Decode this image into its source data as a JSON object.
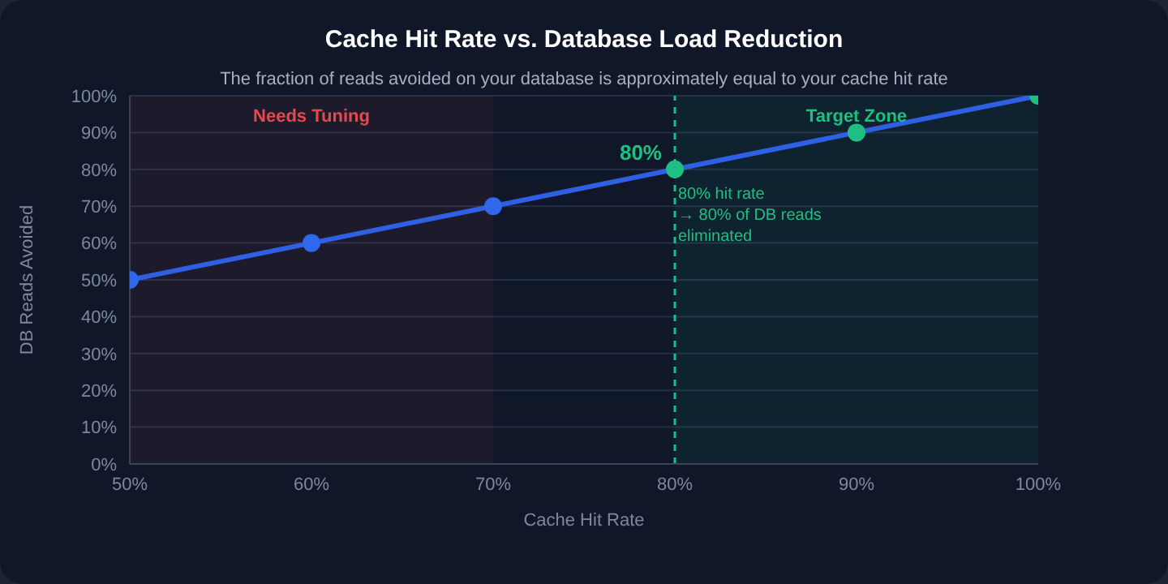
{
  "chart_data": {
    "type": "line",
    "title": "Cache Hit Rate vs. Database Load Reduction",
    "subtitle": "The fraction of reads avoided on your database is approximately equal to your cache hit rate",
    "xlabel": "Cache Hit Rate",
    "ylabel": "DB Reads Avoided",
    "x": [
      50,
      60,
      70,
      80,
      90,
      100
    ],
    "series": [
      {
        "color": "#2f5fe3",
        "colors": [
          "#2f68eb",
          "#2f68eb",
          "#2f68eb",
          "#1fbf83",
          "#1fbf83",
          "#1fbf83"
        ],
        "values": [
          50,
          60,
          70,
          80,
          90,
          100
        ]
      }
    ],
    "xlim": [
      50,
      100
    ],
    "xticks": [
      {
        "value": 50,
        "label": "50%"
      },
      {
        "value": 60,
        "label": "60%"
      },
      {
        "value": 70,
        "label": "70%"
      },
      {
        "value": 80,
        "label": "80%"
      },
      {
        "value": 90,
        "label": "90%"
      },
      {
        "value": 100,
        "label": "100%"
      }
    ],
    "ylim": [
      0,
      100
    ],
    "yticks": [
      {
        "value": 0,
        "label": "0%"
      },
      {
        "value": 10,
        "label": "10%"
      },
      {
        "value": 20,
        "label": "20%"
      },
      {
        "value": 30,
        "label": "30%"
      },
      {
        "value": 40,
        "label": "40%"
      },
      {
        "value": 50,
        "label": "50%"
      },
      {
        "value": 60,
        "label": "60%"
      },
      {
        "value": 70,
        "label": "70%"
      },
      {
        "value": 80,
        "label": "80%"
      },
      {
        "value": 90,
        "label": "90%"
      },
      {
        "value": 100,
        "label": "100%"
      }
    ],
    "bands": [
      {
        "axis": "x",
        "from": 50,
        "to": 70,
        "label": "Needs Tuning",
        "color": "#e5484d"
      },
      {
        "axis": "x",
        "from": 80,
        "to": 100,
        "label": "Target Zone",
        "color": "#1fbf83"
      }
    ],
    "ref_lines": [
      {
        "axis": "x",
        "value": 80,
        "color": "#1fbf83",
        "line_style": "dashed"
      }
    ],
    "annotations": [
      {
        "text": "80%",
        "x": 80,
        "y": 80
      },
      {
        "text": "80% hit rate\n→ 80% of DB reads\neliminated",
        "x": 80,
        "y": 80
      }
    ],
    "grid": "y",
    "marker": "circle",
    "line_style": "solid",
    "legend": false
  }
}
